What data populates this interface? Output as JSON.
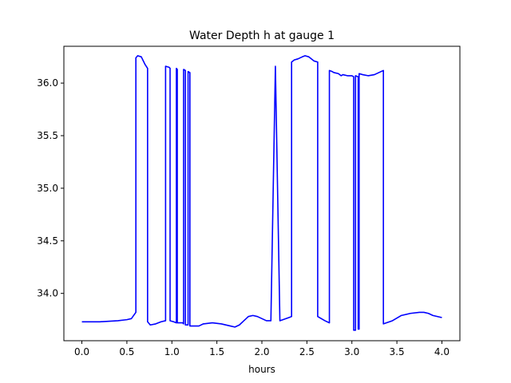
{
  "chart_data": {
    "type": "line",
    "title": "Water Depth h at gauge 1",
    "xlabel": "hours",
    "ylabel": "",
    "xlim": [
      -0.2,
      4.2
    ],
    "ylim": [
      33.55,
      36.35
    ],
    "xticks": [
      0.0,
      0.5,
      1.0,
      1.5,
      2.0,
      2.5,
      3.0,
      3.5,
      4.0
    ],
    "xtick_labels": [
      "0.0",
      "0.5",
      "1.0",
      "1.5",
      "2.0",
      "2.5",
      "3.0",
      "3.5",
      "4.0"
    ],
    "yticks": [
      34.0,
      34.5,
      35.0,
      35.5,
      36.0
    ],
    "ytick_labels": [
      "34.0",
      "34.5",
      "35.0",
      "35.5",
      "36.0"
    ],
    "grid": false,
    "series": [
      {
        "color": "#0000ff",
        "x": [
          0.0,
          0.2,
          0.4,
          0.5,
          0.55,
          0.6,
          0.6,
          0.62,
          0.66,
          0.7,
          0.73,
          0.73,
          0.76,
          0.82,
          0.88,
          0.93,
          0.93,
          0.97,
          0.98,
          0.98,
          1.02,
          1.05,
          1.05,
          1.06,
          1.06,
          1.12,
          1.13,
          1.13,
          1.15,
          1.15,
          1.18,
          1.18,
          1.2,
          1.2,
          1.24,
          1.3,
          1.35,
          1.45,
          1.55,
          1.65,
          1.7,
          1.75,
          1.8,
          1.85,
          1.9,
          1.95,
          2.0,
          2.05,
          2.1,
          2.15,
          2.15,
          2.2,
          2.2,
          2.3,
          2.33,
          2.33,
          2.36,
          2.4,
          2.45,
          2.48,
          2.52,
          2.58,
          2.62,
          2.62,
          2.7,
          2.75,
          2.75,
          2.78,
          2.8,
          2.85,
          2.88,
          2.9,
          2.95,
          3.0,
          3.02,
          3.02,
          3.04,
          3.04,
          3.07,
          3.07,
          3.08,
          3.08,
          3.12,
          3.18,
          3.25,
          3.3,
          3.35,
          3.35,
          3.45,
          3.55,
          3.65,
          3.75,
          3.8,
          3.85,
          3.9,
          4.0
        ],
        "y": [
          33.73,
          33.73,
          33.74,
          33.75,
          33.76,
          33.82,
          36.24,
          36.26,
          36.25,
          36.18,
          36.14,
          33.73,
          33.7,
          33.71,
          33.73,
          33.74,
          36.16,
          36.15,
          36.14,
          33.74,
          33.73,
          33.72,
          36.14,
          36.13,
          33.72,
          33.72,
          33.71,
          36.13,
          36.12,
          33.7,
          33.7,
          36.11,
          36.1,
          33.69,
          33.69,
          33.69,
          33.71,
          33.72,
          33.71,
          33.69,
          33.68,
          33.7,
          33.74,
          33.78,
          33.79,
          33.78,
          33.76,
          33.74,
          33.74,
          36.16,
          36.16,
          33.74,
          33.74,
          33.77,
          33.78,
          36.2,
          36.22,
          36.23,
          36.25,
          36.26,
          36.25,
          36.21,
          36.2,
          33.78,
          33.74,
          33.72,
          36.12,
          36.11,
          36.1,
          36.09,
          36.07,
          36.08,
          36.07,
          36.07,
          36.06,
          33.65,
          33.65,
          36.07,
          36.06,
          33.66,
          33.66,
          36.09,
          36.08,
          36.07,
          36.08,
          36.1,
          36.12,
          33.71,
          33.74,
          33.79,
          33.81,
          33.82,
          33.82,
          33.81,
          33.79,
          33.77
        ]
      }
    ]
  }
}
